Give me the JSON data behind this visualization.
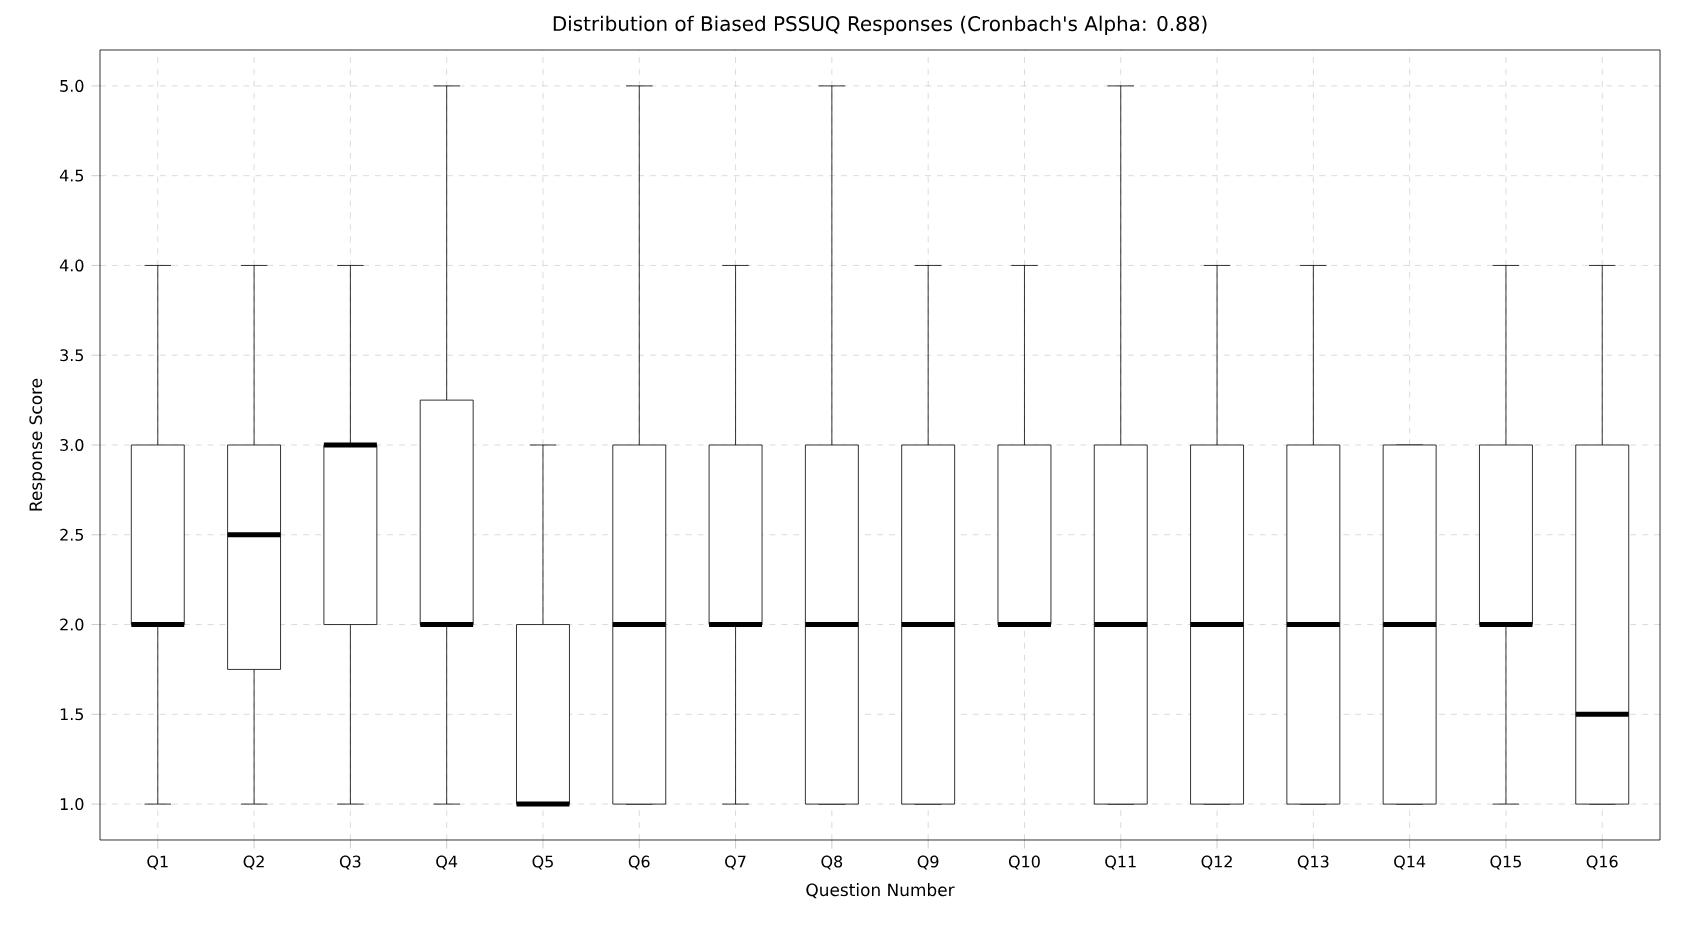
{
  "chart_data": {
    "type": "box",
    "title": "Distribution of Biased PSSUQ Responses (Cronbach's Alpha: 0.88)",
    "xlabel": "Question Number",
    "ylabel": "Response Score",
    "categories": [
      "Q1",
      "Q2",
      "Q3",
      "Q4",
      "Q5",
      "Q6",
      "Q7",
      "Q8",
      "Q9",
      "Q10",
      "Q11",
      "Q12",
      "Q13",
      "Q14",
      "Q15",
      "Q16"
    ],
    "boxes": [
      {
        "low": 1,
        "q1": 2,
        "median": 2,
        "q3": 3,
        "high": 4
      },
      {
        "low": 1,
        "q1": 1.75,
        "median": 2.5,
        "q3": 3,
        "high": 4
      },
      {
        "low": 1,
        "q1": 2,
        "median": 3,
        "q3": 3,
        "high": 4
      },
      {
        "low": 1,
        "q1": 2,
        "median": 2,
        "q3": 3.25,
        "high": 5
      },
      {
        "low": 1,
        "q1": 1,
        "median": 1,
        "q3": 2,
        "high": 3
      },
      {
        "low": 1,
        "q1": 1,
        "median": 2,
        "q3": 3,
        "high": 5
      },
      {
        "low": 1,
        "q1": 2,
        "median": 2,
        "q3": 3,
        "high": 4
      },
      {
        "low": 1,
        "q1": 1,
        "median": 2,
        "q3": 3,
        "high": 5
      },
      {
        "low": 1,
        "q1": 1,
        "median": 2,
        "q3": 3,
        "high": 4
      },
      {
        "low": 2,
        "q1": 2,
        "median": 2,
        "q3": 3,
        "high": 4
      },
      {
        "low": 1,
        "q1": 1,
        "median": 2,
        "q3": 3,
        "high": 5
      },
      {
        "low": 1,
        "q1": 1,
        "median": 2,
        "q3": 3,
        "high": 4
      },
      {
        "low": 1,
        "q1": 1,
        "median": 2,
        "q3": 3,
        "high": 4
      },
      {
        "low": 1,
        "q1": 1,
        "median": 2,
        "q3": 3,
        "high": 3
      },
      {
        "low": 1,
        "q1": 2,
        "median": 2,
        "q3": 3,
        "high": 4
      },
      {
        "low": 1,
        "q1": 1,
        "median": 1.5,
        "q3": 3,
        "high": 4
      }
    ],
    "ylim": [
      0.8,
      5.2
    ],
    "yticks": [
      {
        "value": 1,
        "label": "1.0"
      },
      {
        "value": 1.5,
        "label": "1.5"
      },
      {
        "value": 2,
        "label": "2.0"
      },
      {
        "value": 2.5,
        "label": "2.5"
      },
      {
        "value": 3,
        "label": "3.0"
      },
      {
        "value": 3.5,
        "label": "3.5"
      },
      {
        "value": 4,
        "label": "4.0"
      },
      {
        "value": 4.5,
        "label": "4.5"
      },
      {
        "value": 5,
        "label": "5.0"
      }
    ],
    "grid": true
  }
}
